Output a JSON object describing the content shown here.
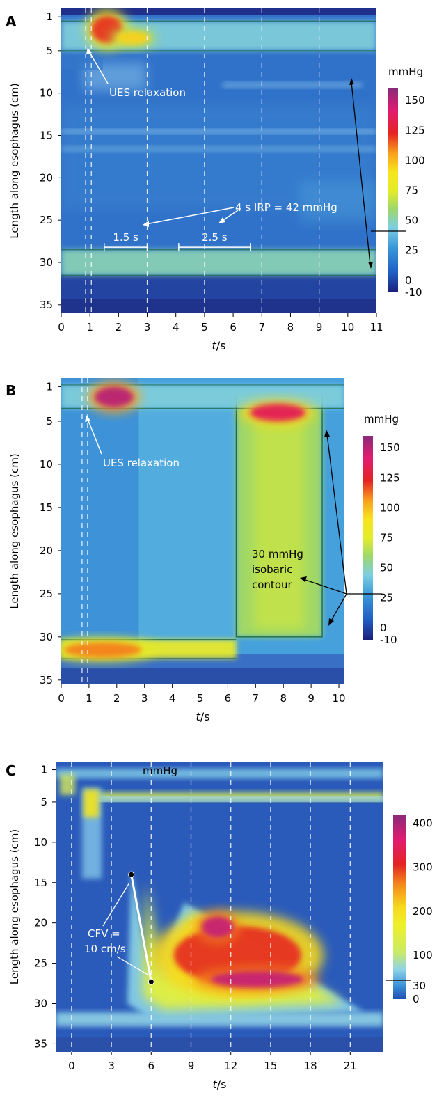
{
  "chart_data": [
    {
      "type": "heatmap",
      "panel_label": "A",
      "title": "",
      "xlabel": "t/s",
      "ylabel": "Length along esophagus (cm)",
      "x_ticks": [
        0,
        1,
        2,
        3,
        4,
        5,
        6,
        7,
        8,
        9,
        10,
        11
      ],
      "y_ticks": [
        1,
        5,
        10,
        15,
        20,
        25,
        30,
        35
      ],
      "xlim": [
        0,
        11
      ],
      "ylim": [
        0,
        36
      ],
      "colorbar": {
        "unit": "mmHg",
        "ticks": [
          150,
          125,
          100,
          75,
          50,
          25,
          0,
          -10
        ],
        "range": [
          -10,
          160
        ]
      },
      "dashed_lines_t": [
        0.85,
        1.05,
        3,
        5,
        7,
        9
      ],
      "bands": [
        {
          "y0": 1.5,
          "y1": 5,
          "t0": 0,
          "t1": 11,
          "level": 45
        },
        {
          "y0": 28.5,
          "y1": 31.5,
          "t0": 0,
          "t1": 11,
          "level": 50
        }
      ],
      "hotspots": [
        {
          "t": 1.6,
          "y": 2.5,
          "rt": 0.55,
          "ry": 1.6,
          "level": 120
        },
        {
          "t": 2.5,
          "y": 3.5,
          "rt": 0.6,
          "ry": 0.8,
          "level": 95
        }
      ],
      "annotations": {
        "ues": {
          "label": "UES relaxation",
          "t": 0.95,
          "y": 3.8
        },
        "irp": {
          "label": "4 s IRP = 42 mmHg"
        },
        "interval1": {
          "label": "1.5 s",
          "t0": 1.5,
          "t1": 3.0,
          "y": 28.2
        },
        "interval2": {
          "label": "2.5 s",
          "t0": 4.1,
          "t1": 6.6,
          "y": 28.2
        }
      }
    },
    {
      "type": "heatmap",
      "panel_label": "B",
      "title": "",
      "xlabel": "t/s",
      "ylabel": "Length along esophagus (cm)",
      "x_ticks": [
        0,
        1,
        2,
        3,
        4,
        5,
        6,
        7,
        8,
        9,
        10
      ],
      "y_ticks": [
        1,
        5,
        10,
        15,
        20,
        25,
        30,
        35
      ],
      "xlim": [
        0,
        10.2
      ],
      "ylim": [
        0,
        35.5
      ],
      "colorbar": {
        "unit": "mmHg",
        "ticks": [
          150,
          125,
          100,
          75,
          50,
          25,
          0,
          -10
        ],
        "range": [
          -10,
          160
        ]
      },
      "dashed_lines_t": [
        0.75,
        0.95
      ],
      "pressurization": {
        "t0": 6.3,
        "t1": 9.4,
        "y0": 2,
        "y1": 30,
        "level": 60
      },
      "bands": [
        {
          "y0": 0.8,
          "y1": 3.5,
          "t0": 0,
          "t1": 10.2,
          "level": 45
        },
        {
          "y0": 30.3,
          "y1": 32.5,
          "t0": 0,
          "t1": 6.3,
          "level": 80
        }
      ],
      "hotspots": [
        {
          "t": 1.9,
          "y": 2.2,
          "rt": 0.7,
          "ry": 1.2,
          "level": 150
        },
        {
          "t": 7.8,
          "y": 4.0,
          "rt": 1.0,
          "ry": 1.0,
          "level": 135
        },
        {
          "t": 1.5,
          "y": 31.5,
          "rt": 1.4,
          "ry": 0.9,
          "level": 110
        }
      ],
      "annotations": {
        "ues": {
          "label": "UES relaxation",
          "t": 0.95,
          "y": 4.0
        },
        "isobaric": {
          "lines": [
            "30 mmHg",
            "isobaric",
            "contour"
          ]
        }
      }
    },
    {
      "type": "heatmap",
      "panel_label": "C",
      "title": "",
      "xlabel": "t/s",
      "ylabel": "Length along esophagus (cm)",
      "x_ticks": [
        0,
        3,
        6,
        9,
        12,
        15,
        18,
        21
      ],
      "y_ticks": [
        1,
        5,
        10,
        15,
        20,
        25,
        30,
        35
      ],
      "xlim": [
        -1.2,
        23.5
      ],
      "ylim": [
        0,
        36
      ],
      "colorbar": {
        "unit": "mmHg",
        "ticks": [
          400,
          300,
          200,
          100,
          30,
          0
        ],
        "range": [
          0,
          420
        ]
      },
      "dashed_lines_t": [
        0,
        3,
        6,
        9,
        12,
        15,
        18,
        21
      ],
      "bolus_triangle": {
        "points": [
          [
            4.5,
            13.5
          ],
          [
            6.0,
            27.5
          ],
          [
            8.5,
            17.5
          ],
          [
            22.0,
            31.0
          ],
          [
            6.0,
            32.0
          ],
          [
            4.2,
            30.0
          ]
        ],
        "level": 100
      },
      "hotspots": [
        {
          "t": 12.5,
          "y": 24.0,
          "rt": 4.8,
          "ry": 3.6,
          "level": 300
        },
        {
          "t": 11.0,
          "y": 20.5,
          "rt": 1.2,
          "ry": 1.3,
          "level": 380
        },
        {
          "t": 14.0,
          "y": 27.0,
          "rt": 3.5,
          "ry": 1.0,
          "level": 380
        }
      ],
      "annotations": {
        "mmhg_label": "mmHg",
        "cfv": {
          "lines": [
            "CFV =",
            "10 cm/s"
          ],
          "p0": [
            4.5,
            14.0
          ],
          "p1": [
            6.0,
            27.3
          ]
        }
      }
    }
  ]
}
